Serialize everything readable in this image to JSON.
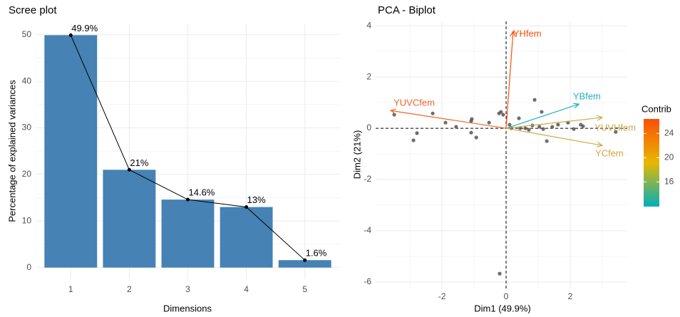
{
  "chart_data": [
    {
      "type": "scree",
      "title": "Scree plot",
      "x_label": "Dimensions",
      "y_label": "Percentage of explained variances",
      "categories": [
        "1",
        "2",
        "3",
        "4",
        "5"
      ],
      "values": [
        49.9,
        21,
        14.6,
        13,
        1.6
      ],
      "value_labels": [
        "49.9%",
        "21%",
        "14.6%",
        "13%",
        "1.6%"
      ],
      "color": "#4682b4",
      "line_color": "#000000",
      "ylim": [
        -2.5,
        52.4
      ],
      "yticks": [
        0,
        10,
        20,
        30,
        40,
        50
      ],
      "grid": true
    },
    {
      "type": "biplot",
      "title": "PCA - Biplot",
      "x_label": "Dim1 (49.9%)",
      "y_label": "Dim2 (21%)",
      "xlim": [
        -4.07,
        3.78
      ],
      "ylim": [
        -6.25,
        4.17
      ],
      "xticks": [
        -2,
        0,
        2
      ],
      "yticks": [
        -6,
        -4,
        -2,
        0,
        2,
        4
      ],
      "grid": true,
      "points": {
        "color": "#555555",
        "x": [
          -3.49,
          -2.78,
          -2.89,
          -2.29,
          -1.89,
          -1.56,
          -1.09,
          -1.07,
          -1.09,
          -0.93,
          -0.53,
          -0.22,
          -0.16,
          -0.09,
          -0.2,
          0.11,
          0.16,
          0.4,
          0.44,
          0.6,
          0.71,
          0.82,
          0.89,
          1.04,
          1.11,
          1.16,
          1.27,
          1.44,
          1.62,
          1.93,
          2.11,
          2.33,
          2.4,
          3.42
        ],
        "y": [
          0.53,
          -0.19,
          -0.47,
          0.58,
          0.22,
          0.06,
          0.28,
          0.36,
          -0.17,
          -0.36,
          0.22,
          0.58,
          0.64,
          0.53,
          -5.67,
          0.14,
          0,
          0.39,
          0,
          0,
          -0.06,
          0.11,
          1.11,
          0.06,
          0.64,
          -0.03,
          -0.5,
          0.06,
          0.14,
          0.22,
          -0.03,
          0.14,
          0.08,
          -0.14
        ]
      },
      "arrows": [
        {
          "name": "YHfem",
          "x": 0.22,
          "y": 3.78,
          "contrib": 26.4,
          "color": "#fc4e07"
        },
        {
          "name": "YBfem",
          "x": 2.27,
          "y": 0.94,
          "contrib": 12.5,
          "color": "#1fb1c0"
        },
        {
          "name": "YUVCfem",
          "x": -3.6,
          "y": 0.69,
          "contrib": 25,
          "color": "#f0642a"
        },
        {
          "name": "YUVHfem",
          "x": 3.0,
          "y": 0.42,
          "contrib": 18,
          "color": "#cfa94a"
        },
        {
          "name": "YCfem",
          "x": 3.0,
          "y": -0.67,
          "contrib": 18,
          "color": "#d2a845"
        }
      ],
      "legend": {
        "title": "Contrib",
        "lim": [
          11.9,
          26.4
        ],
        "ticks": [
          16,
          20,
          24
        ],
        "colors": [
          "#00AFBB",
          "#E7B800",
          "#FC4E07"
        ]
      }
    }
  ]
}
